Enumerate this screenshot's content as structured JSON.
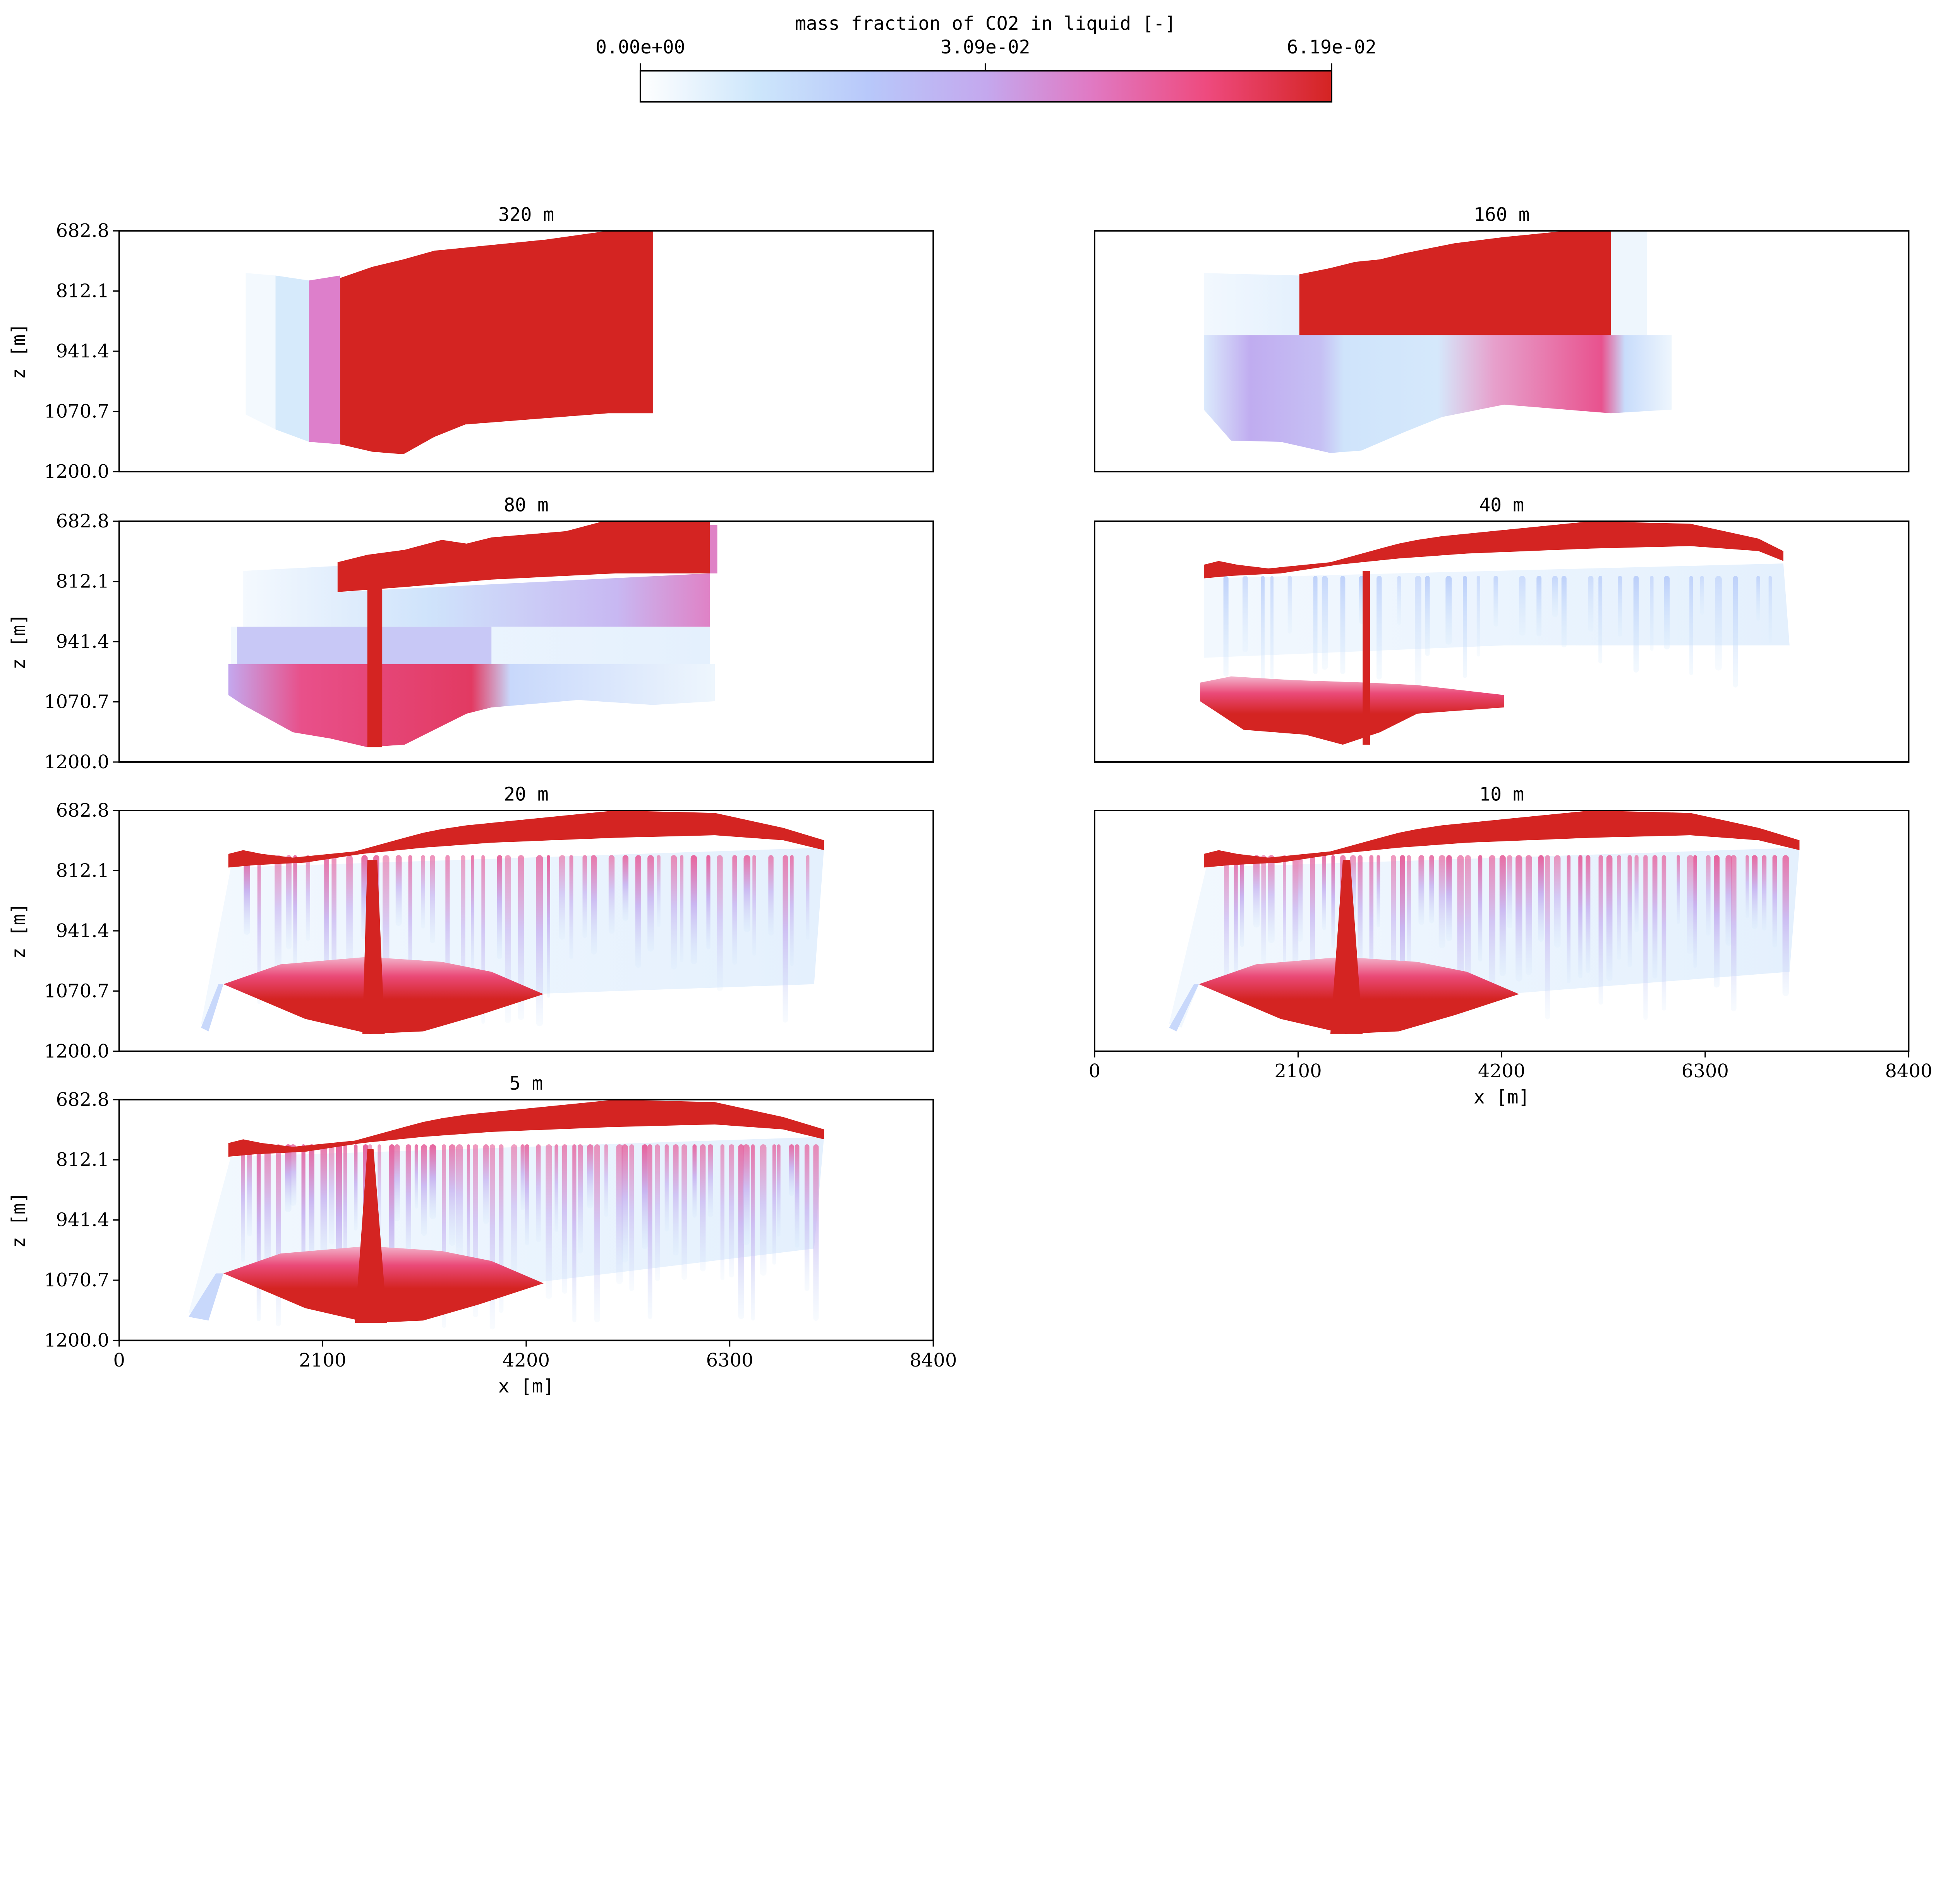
{
  "colorbar": {
    "label": "mass fraction of CO2 in liquid [-]",
    "ticks": [
      "0.00e+00",
      "3.09e-02",
      "6.19e-02"
    ],
    "range": [
      0.0,
      0.0619
    ],
    "colors": [
      "#ffffff",
      "#cde6fb",
      "#b8c4fa",
      "#c4a8ee",
      "#e07ac4",
      "#ee4a7e",
      "#d42422"
    ]
  },
  "chart_data": [
    {
      "type": "heatmap",
      "title": "320 m",
      "xlabel": "",
      "ylabel": "z [m]",
      "xlim": [
        0,
        8400
      ],
      "ylim": [
        1200.0,
        682.8
      ],
      "xticks": [],
      "yticks": [
        "682.8",
        "812.1",
        "941.4",
        "1070.7",
        "1200.0"
      ],
      "grid": false
    },
    {
      "type": "heatmap",
      "title": "160 m",
      "xlabel": "",
      "ylabel": "",
      "xlim": [
        0,
        8400
      ],
      "ylim": [
        1200.0,
        682.8
      ],
      "xticks": [],
      "yticks": [],
      "grid": false
    },
    {
      "type": "heatmap",
      "title": "80 m",
      "xlabel": "",
      "ylabel": "z [m]",
      "xlim": [
        0,
        8400
      ],
      "ylim": [
        1200.0,
        682.8
      ],
      "xticks": [],
      "yticks": [
        "682.8",
        "812.1",
        "941.4",
        "1070.7",
        "1200.0"
      ],
      "grid": false
    },
    {
      "type": "heatmap",
      "title": "40 m",
      "xlabel": "",
      "ylabel": "",
      "xlim": [
        0,
        8400
      ],
      "ylim": [
        1200.0,
        682.8
      ],
      "xticks": [],
      "yticks": [],
      "grid": false
    },
    {
      "type": "heatmap",
      "title": "20 m",
      "xlabel": "",
      "ylabel": "z [m]",
      "xlim": [
        0,
        8400
      ],
      "ylim": [
        1200.0,
        682.8
      ],
      "xticks": [],
      "yticks": [
        "682.8",
        "812.1",
        "941.4",
        "1070.7",
        "1200.0"
      ],
      "grid": false
    },
    {
      "type": "heatmap",
      "title": "10 m",
      "xlabel": "x [m]",
      "ylabel": "",
      "xlim": [
        0,
        8400
      ],
      "ylim": [
        1200.0,
        682.8
      ],
      "xticks": [
        "0",
        "2100",
        "4200",
        "6300",
        "8400"
      ],
      "yticks": [],
      "grid": false
    },
    {
      "type": "heatmap",
      "title": "5 m",
      "xlabel": "x [m]",
      "ylabel": "z [m]",
      "xlim": [
        0,
        8400
      ],
      "ylim": [
        1200.0,
        682.8
      ],
      "xticks": [
        "0",
        "2100",
        "4200",
        "6300",
        "8400"
      ],
      "yticks": [
        "682.8",
        "812.1",
        "941.4",
        "1070.7",
        "1200.0"
      ],
      "grid": false
    }
  ]
}
